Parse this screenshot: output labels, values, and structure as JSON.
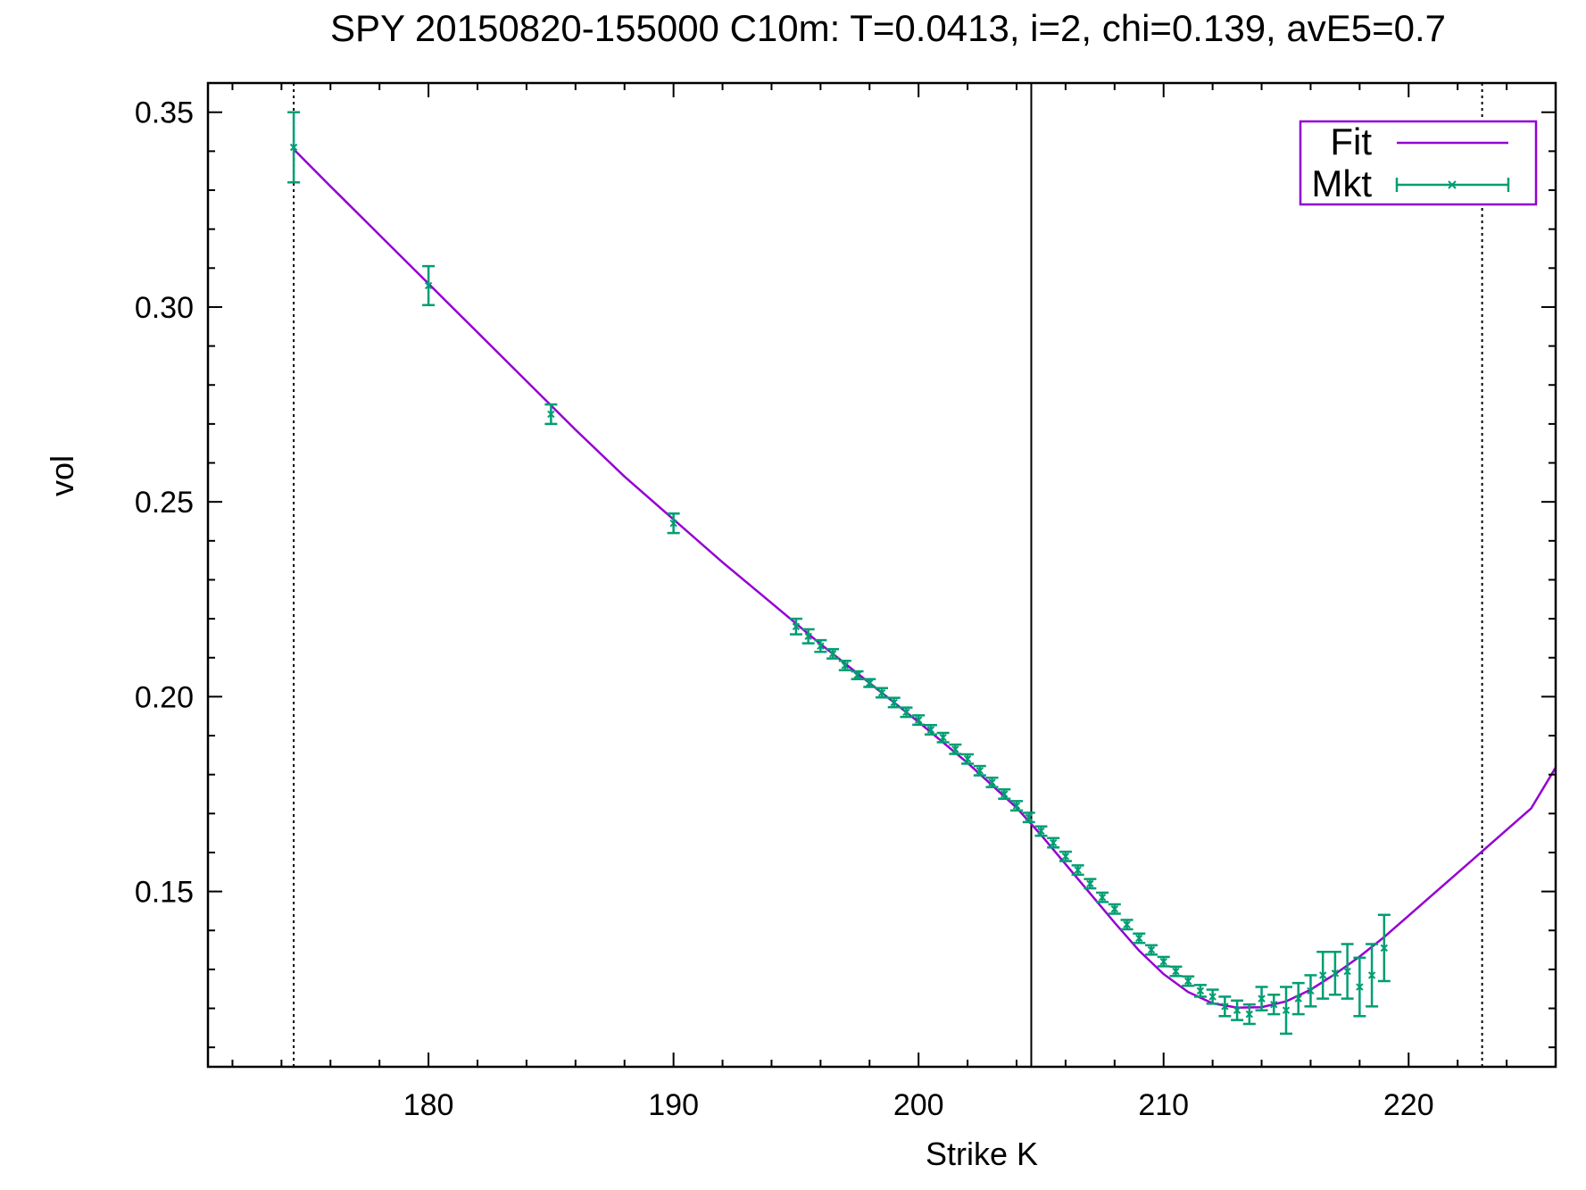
{
  "chart_data": {
    "type": "line",
    "title": "SPY 20150820-155000  C10m:  T=0.0413, i=2, chi=0.139, avE5=0.7",
    "xlabel": "Strike K",
    "ylabel": "vol",
    "xlim": [
      171,
      226
    ],
    "ylim": [
      0.105,
      0.3575
    ],
    "x_ticks": [
      180,
      190,
      200,
      210,
      220
    ],
    "x_tick_labels": [
      "180",
      "190",
      "200",
      "210",
      "220"
    ],
    "y_ticks": [
      0.15,
      0.2,
      0.25,
      0.3,
      0.35
    ],
    "y_tick_labels": [
      "0.15",
      "0.20",
      "0.25",
      "0.30",
      "0.35"
    ],
    "grid": false,
    "legend_position": "top-right",
    "vertical_lines": [
      {
        "x": 174.5,
        "style": "dotted"
      },
      {
        "x": 204.6,
        "style": "solid"
      },
      {
        "x": 223.0,
        "style": "dotted"
      }
    ],
    "series": [
      {
        "name": "Fit",
        "kind": "line",
        "color": "#9400d3",
        "x": [
          174.5,
          176,
          178,
          180,
          182,
          184,
          186,
          188,
          190,
          192,
          194,
          196,
          198,
          200,
          202,
          204,
          205,
          206,
          207,
          208,
          209,
          210,
          211,
          212,
          213,
          214,
          215,
          216,
          217,
          218,
          219,
          220,
          221,
          222,
          223,
          224,
          225,
          226
        ],
        "y": [
          0.3405,
          0.331,
          0.3185,
          0.306,
          0.2935,
          0.281,
          0.2685,
          0.2565,
          0.2455,
          0.2345,
          0.224,
          0.2135,
          0.2035,
          0.1935,
          0.183,
          0.1715,
          0.1645,
          0.157,
          0.1495,
          0.142,
          0.1348,
          0.1288,
          0.1242,
          0.1213,
          0.1202,
          0.1203,
          0.1218,
          0.1248,
          0.1288,
          0.1333,
          0.1383,
          0.1438,
          0.1493,
          0.1548,
          0.1603,
          0.1658,
          0.1713,
          0.1818
        ]
      },
      {
        "name": "Mkt",
        "kind": "errorbar",
        "color": "#009e73",
        "x": [
          174.5,
          180,
          185,
          190,
          195,
          195.5,
          196,
          196.5,
          197,
          197.5,
          198,
          198.5,
          199,
          199.5,
          200,
          200.5,
          201,
          201.5,
          202,
          202.5,
          203,
          203.5,
          204,
          204.5,
          205,
          205.5,
          206,
          206.5,
          207,
          207.5,
          208,
          208.5,
          209,
          209.5,
          210,
          210.5,
          211,
          211.5,
          212,
          212.5,
          213,
          213.5,
          214,
          214.5,
          215,
          215.5,
          216,
          216.5,
          217,
          217.5,
          218,
          218.5,
          219
        ],
        "y": [
          0.341,
          0.3055,
          0.2725,
          0.2445,
          0.218,
          0.2155,
          0.213,
          0.211,
          0.208,
          0.2055,
          0.2035,
          0.201,
          0.1985,
          0.196,
          0.194,
          0.1915,
          0.1895,
          0.1865,
          0.184,
          0.181,
          0.178,
          0.175,
          0.172,
          0.169,
          0.1655,
          0.1625,
          0.159,
          0.1555,
          0.152,
          0.1485,
          0.1455,
          0.1415,
          0.138,
          0.135,
          0.132,
          0.1295,
          0.127,
          0.1245,
          0.123,
          0.1205,
          0.1195,
          0.1185,
          0.1225,
          0.121,
          0.1195,
          0.1225,
          0.1245,
          0.1285,
          0.129,
          0.1295,
          0.1255,
          0.1285,
          0.1355
        ],
        "err": [
          0.009,
          0.005,
          0.0025,
          0.0025,
          0.002,
          0.0018,
          0.0015,
          0.0012,
          0.0012,
          0.001,
          0.001,
          0.0012,
          0.0012,
          0.0012,
          0.0012,
          0.0012,
          0.0012,
          0.0012,
          0.0012,
          0.0012,
          0.0012,
          0.0012,
          0.0012,
          0.0012,
          0.0012,
          0.0012,
          0.0012,
          0.0012,
          0.0012,
          0.0012,
          0.0012,
          0.0012,
          0.0012,
          0.0012,
          0.0012,
          0.0012,
          0.0012,
          0.0015,
          0.0018,
          0.0025,
          0.0025,
          0.0025,
          0.003,
          0.0025,
          0.006,
          0.004,
          0.004,
          0.006,
          0.0055,
          0.007,
          0.0075,
          0.008,
          0.0085
        ]
      }
    ]
  }
}
